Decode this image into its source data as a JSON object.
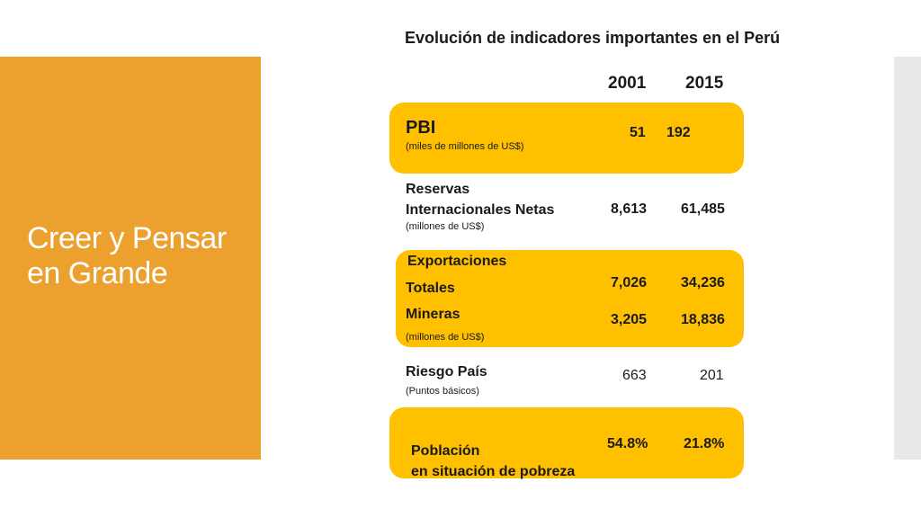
{
  "slide_title": "Creer y Pensar en Grande",
  "heading": "Evolución de indicadores importantes en el Perú",
  "years": [
    "2001",
    "2015"
  ],
  "pbi": {
    "label": "PBI",
    "unit": "(miles de millones de US$)",
    "v2001": "51",
    "v2015": "192"
  },
  "reservas": {
    "label_line1": "Reservas",
    "label_line2": "Internacionales Netas",
    "unit": "(millones de US$)",
    "v2001": "8,613",
    "v2015": "61,485"
  },
  "exportaciones": {
    "label": "Exportaciones",
    "totales_label": "Totales",
    "totales_2001": "7,026",
    "totales_2015": "34,236",
    "mineras_label": "Mineras",
    "mineras_2001": "3,205",
    "mineras_2015": "18,836",
    "unit": "(millones de US$)"
  },
  "riesgo": {
    "label": "Riesgo País",
    "unit": "(Puntos básicos)",
    "v2001": "663",
    "v2015": "201"
  },
  "pobreza": {
    "label_line1": "Población",
    "label_line2": "en situación de pobreza",
    "v2001": "54.8%",
    "v2015": "21.8%"
  },
  "colors": {
    "orange_panel": "#ECA02E",
    "highlight": "#FFC000",
    "side_bar": "#E8E8E8"
  }
}
